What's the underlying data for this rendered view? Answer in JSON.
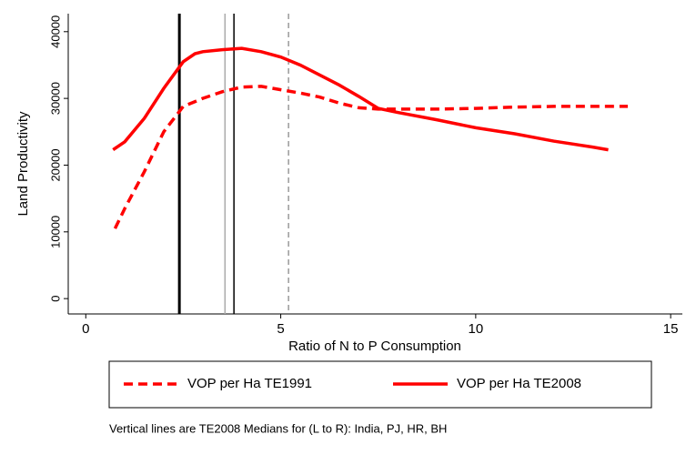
{
  "chart_data": {
    "type": "line",
    "ylabel": "Land Productivity",
    "xlabel": "Ratio of N to P Consumption",
    "note": "Vertical lines are TE2008 Medians for (L to R): India, PJ, HR, BH",
    "xlim": [
      -0.45,
      15.3
    ],
    "xticks": [
      0,
      5,
      10,
      15
    ],
    "ylim": [
      -2300,
      42700
    ],
    "yticks": [
      0,
      10000,
      20000,
      30000,
      40000
    ],
    "series": [
      {
        "name": "VOP per Ha TE1991",
        "color": "#ff0000",
        "style": "dashed",
        "x": [
          0.75,
          1,
          1.5,
          2,
          2.5,
          3,
          3.5,
          4,
          4.5,
          5,
          5.5,
          6,
          6.5,
          7,
          7.5,
          8,
          9,
          10,
          11,
          12,
          13,
          13.9
        ],
        "values": [
          10500,
          13500,
          19000,
          25000,
          28800,
          30000,
          31000,
          31700,
          31800,
          31300,
          30800,
          30200,
          29300,
          28600,
          28400,
          28400,
          28400,
          28500,
          28700,
          28800,
          28800,
          28800
        ]
      },
      {
        "name": "VOP per Ha TE2008",
        "color": "#ff0000",
        "style": "solid",
        "x": [
          0.7,
          1,
          1.5,
          2,
          2.5,
          2.8,
          3,
          3.5,
          4,
          4.5,
          5,
          5.5,
          6,
          6.5,
          7,
          7.5,
          8,
          9,
          10,
          11,
          12,
          13,
          13.4
        ],
        "values": [
          22300,
          23500,
          27000,
          31500,
          35500,
          36700,
          37000,
          37300,
          37500,
          37000,
          36200,
          35000,
          33500,
          32000,
          30300,
          28500,
          27900,
          26800,
          25600,
          24700,
          23600,
          22700,
          22300
        ]
      }
    ],
    "vlines": [
      {
        "value": 2.4,
        "color": "#000000",
        "width": 3,
        "style": "solid"
      },
      {
        "value": 3.57,
        "color": "#aaaaaa",
        "width": 1.5,
        "style": "solid"
      },
      {
        "value": 3.8,
        "color": "#000000",
        "width": 1.5,
        "style": "solid"
      },
      {
        "value": 5.2,
        "color": "#999999",
        "width": 1.5,
        "style": "dashed"
      }
    ]
  }
}
